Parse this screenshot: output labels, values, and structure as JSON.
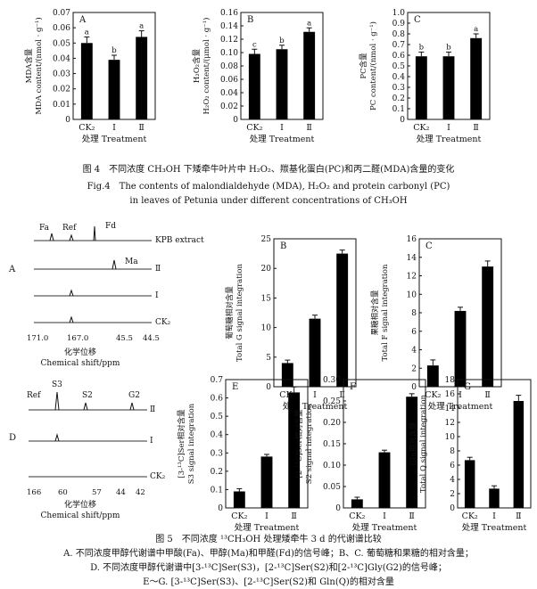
{
  "fig4": {
    "caption_cn": "图 4　不同浓度 CH₃OH 下矮牵牛叶片中 H₂O₂、羰基化蛋白(PC)和丙二醛(MDA)含量的变化",
    "caption_en1": "Fig.4　The contents of malondialdehyde (MDA), H₂O₂ and protein carbonyl (PC)",
    "caption_en2": "in leaves of Petunia under different concentrations of CH₃OH"
  },
  "fig5": {
    "caption_title": "图 5　不同浓度 ¹³CH₃OH 处理矮牵牛 3 d 的代谢谱比较",
    "caption_lines": [
      "A. 不同浓度甲醇代谢谱中甲酸(Fa)、甲醇(Ma)和甲醛(Fd)的信号峰；B、C. 葡萄糖和果糖的相对含量；",
      "D. 不同浓度甲醇代谢谱中[3-¹³C]Ser(S3)，[2-¹³C]Ser(S2)和[2-¹³C]Gly(G2)的信号峰；",
      "E～G. [3-¹³C]Ser(S3)、[2-¹³C]Ser(S2)和 Gln(Q)的相对含量"
    ],
    "spectra_A": {
      "panel": "A",
      "peaks": [
        "Fa",
        "Ref",
        "Fd",
        "Ma"
      ],
      "traces": [
        "KPB extract",
        "Ⅱ",
        "Ⅰ",
        "CK₂"
      ],
      "ticks": [
        "171.0",
        "167.0",
        "45.5",
        "44.5"
      ],
      "xlabel_cn": "化学位移",
      "xlabel_en": "Chemical shift/ppm"
    },
    "spectra_D": {
      "panel": "D",
      "peaks": [
        "Ref",
        "S3",
        "S2",
        "G2"
      ],
      "traces": [
        "Ⅱ",
        "Ⅰ",
        "CK₂"
      ],
      "ticks": [
        "166",
        "60",
        "57",
        "44",
        "42"
      ],
      "xlabel_cn": "化学位移",
      "xlabel_en": "Chemical shift/ppm"
    }
  },
  "chart_data": [
    {
      "panel": "A",
      "type": "bar",
      "categories": [
        "CK₂",
        "Ⅰ",
        "Ⅱ"
      ],
      "values": [
        0.05,
        0.039,
        0.054
      ],
      "errors": [
        0.004,
        0.003,
        0.004
      ],
      "letters": [
        "a",
        "b",
        "a"
      ],
      "ylabel": [
        "MDA含量",
        "MDA content/(nmol · g⁻¹)"
      ],
      "xlabel": "处理 Treatment",
      "ylim": [
        0,
        0.07
      ],
      "yticks": [
        "0",
        "0.01",
        "0.02",
        "0.03",
        "0.04",
        "0.05",
        "0.06",
        "0.07"
      ]
    },
    {
      "panel": "B",
      "type": "bar",
      "categories": [
        "CK₂",
        "Ⅰ",
        "Ⅱ"
      ],
      "values": [
        0.098,
        0.105,
        0.131
      ],
      "errors": [
        0.007,
        0.006,
        0.006
      ],
      "letters": [
        "c",
        "b",
        "a"
      ],
      "ylabel": [
        "H₂O₂含量",
        "H₂O₂ content/(μmol · g⁻¹)"
      ],
      "xlabel": "处理 Treatment",
      "ylim": [
        0,
        0.16
      ],
      "yticks": [
        "0",
        "0.02",
        "0.04",
        "0.06",
        "0.08",
        "0.10",
        "0.12",
        "0.14",
        "0.16"
      ]
    },
    {
      "panel": "C",
      "type": "bar",
      "categories": [
        "CK₂",
        "Ⅰ",
        "Ⅱ"
      ],
      "values": [
        0.59,
        0.59,
        0.76
      ],
      "errors": [
        0.04,
        0.04,
        0.04
      ],
      "letters": [
        "b",
        "b",
        "a"
      ],
      "ylabel": [
        "PC含量",
        "PC content/(nmol · g⁻¹)"
      ],
      "xlabel": "处理 Treatment",
      "ylim": [
        0,
        1.0
      ],
      "yticks": [
        "0",
        "0.1",
        "0.2",
        "0.3",
        "0.4",
        "0.5",
        "0.6",
        "0.7",
        "0.8",
        "0.9",
        "1.0"
      ]
    },
    {
      "panel": "B",
      "type": "bar",
      "categories": [
        "CK₂",
        "Ⅰ",
        "Ⅱ"
      ],
      "values": [
        4.0,
        11.5,
        22.5
      ],
      "errors": [
        0.5,
        0.6,
        0.6
      ],
      "letters": [
        "",
        "",
        ""
      ],
      "ylabel": [
        "葡萄糖相对含量",
        "Total G signal integration"
      ],
      "xlabel": "处理 Treatment",
      "ylim": [
        0,
        25
      ],
      "yticks": [
        "0",
        "5",
        "10",
        "15",
        "20",
        "25"
      ]
    },
    {
      "panel": "C",
      "type": "bar",
      "categories": [
        "CK₂",
        "Ⅰ",
        "Ⅱ"
      ],
      "values": [
        2.3,
        8.2,
        13.0
      ],
      "errors": [
        0.6,
        0.4,
        0.6
      ],
      "letters": [
        "",
        "",
        ""
      ],
      "ylabel": [
        "果糖相对含量",
        "Total F signal integration"
      ],
      "xlabel": "处理 Treatment",
      "ylim": [
        0,
        16
      ],
      "yticks": [
        "0",
        "2",
        "4",
        "6",
        "8",
        "10",
        "12",
        "14",
        "16"
      ]
    },
    {
      "panel": "E",
      "type": "bar",
      "categories": [
        "CK₂",
        "Ⅰ",
        "Ⅱ"
      ],
      "values": [
        0.09,
        0.28,
        0.63
      ],
      "errors": [
        0.015,
        0.012,
        0.03
      ],
      "letters": [
        "",
        "",
        ""
      ],
      "ylabel": [
        "[3-¹³C]Ser相对含量",
        "S3 signal integration"
      ],
      "xlabel": "处理 Treatment",
      "ylim": [
        0,
        0.7
      ],
      "yticks": [
        "0",
        "0.1",
        "0.2",
        "0.3",
        "0.4",
        "0.5",
        "0.6",
        "0.7"
      ]
    },
    {
      "panel": "F",
      "type": "bar",
      "categories": [
        "CK₂",
        "Ⅰ",
        "Ⅱ"
      ],
      "values": [
        0.02,
        0.13,
        0.26
      ],
      "errors": [
        0.005,
        0.005,
        0.007
      ],
      "letters": [
        "",
        "",
        ""
      ],
      "ylabel": [
        "[2-¹³C]Ser相对含量",
        "S2 signal integration"
      ],
      "xlabel": "处理 Treatment",
      "ylim": [
        0,
        0.3
      ],
      "yticks": [
        "0",
        "0.05",
        "0.10",
        "0.15",
        "0.20",
        "0.25",
        "0.30"
      ]
    },
    {
      "panel": "G",
      "type": "bar",
      "categories": [
        "CK₂",
        "Ⅰ",
        "Ⅱ"
      ],
      "values": [
        6.7,
        2.7,
        15.0
      ],
      "errors": [
        0.4,
        0.4,
        0.8
      ],
      "letters": [
        "",
        "",
        ""
      ],
      "ylabel": [
        "Gln相对含量",
        "Total Q signal integration"
      ],
      "xlabel": "处理 Treatment",
      "ylim": [
        0,
        18
      ],
      "yticks": [
        "0",
        "2",
        "4",
        "6",
        "8",
        "10",
        "12",
        "14",
        "16",
        "18"
      ]
    }
  ]
}
